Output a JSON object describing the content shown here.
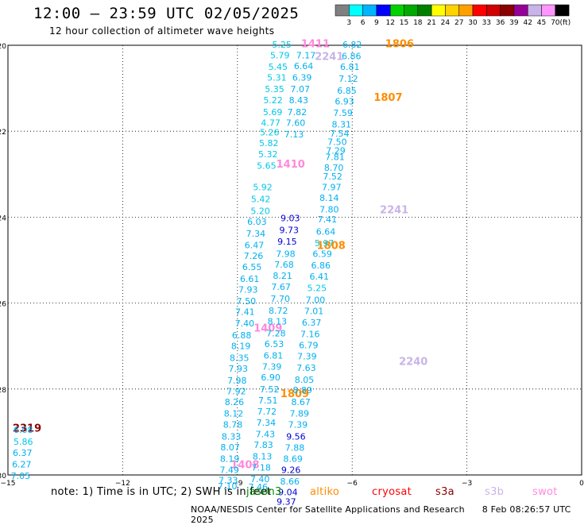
{
  "title": "12:00 – 23:59 UTC 02/05/2025",
  "subtitle": "12 hour collection of altimeter wave heights",
  "note": "note:  1) Time is in UTC;  2) SWH is in feet",
  "credit": "NOAA/NESDIS Center for Satellite Applications and Research",
  "credit_time": "8 Feb 08:26:57 UTC 2025",
  "missions": [
    {
      "name": "jason3",
      "color": "#008800"
    },
    {
      "name": "altiko",
      "color": "#ff8c00"
    },
    {
      "name": "cryosat",
      "color": "#ff0000"
    },
    {
      "name": "s3a",
      "color": "#8b0000"
    },
    {
      "name": "s3b",
      "color": "#c8b4e8"
    },
    {
      "name": "swot",
      "color": "#ff88dd"
    }
  ],
  "color_scale": {
    "unit": "(ft)",
    "labels": [
      "3",
      "6",
      "9",
      "12",
      "15",
      "18",
      "21",
      "24",
      "27",
      "30",
      "33",
      "36",
      "39",
      "42",
      "45",
      "70"
    ],
    "colors": [
      "#808080",
      "#00ffff",
      "#00b4ff",
      "#0000ff",
      "#00d200",
      "#00aa00",
      "#008000",
      "#ffff00",
      "#ffd200",
      "#ffa000",
      "#ff0000",
      "#d20000",
      "#8b0000",
      "#960096",
      "#c8b4e8",
      "#ff96ff",
      "#000000"
    ]
  },
  "map": {
    "lon_range": [
      -15,
      0
    ],
    "lat_range": [
      -30,
      -20
    ],
    "x_ticks": [
      -15,
      -12,
      -9,
      -6,
      -3,
      0
    ],
    "y_ticks": [
      -20,
      -22,
      -24,
      -26,
      -28,
      -30
    ]
  },
  "chart_data": {
    "type": "scatter",
    "x_axis": "longitude",
    "y_axis": "latitude",
    "track_labels": [
      {
        "text": "1411",
        "lon": -6.96,
        "lat": -19.95,
        "color": "#ff88dd"
      },
      {
        "text": "1806",
        "lon": -4.76,
        "lat": -19.95,
        "color": "#ff8c00"
      },
      {
        "text": "2241",
        "lon": -6.6,
        "lat": -20.25,
        "color": "#c8b4e8"
      },
      {
        "text": "1807",
        "lon": -5.06,
        "lat": -21.2,
        "color": "#ff8c00"
      },
      {
        "text": "1410",
        "lon": -7.61,
        "lat": -22.75,
        "color": "#ff88dd"
      },
      {
        "text": "2241",
        "lon": -4.9,
        "lat": -23.82,
        "color": "#c8b4e8"
      },
      {
        "text": "1808",
        "lon": -6.55,
        "lat": -24.65,
        "color": "#ff8c00"
      },
      {
        "text": "1409",
        "lon": -8.2,
        "lat": -26.57,
        "color": "#ff88dd"
      },
      {
        "text": "2240",
        "lon": -4.4,
        "lat": -27.35,
        "color": "#c8b4e8"
      },
      {
        "text": "1809",
        "lon": -7.5,
        "lat": -28.1,
        "color": "#ff8c00"
      },
      {
        "text": "2319",
        "lon": -14.5,
        "lat": -28.9,
        "color": "#8b0000"
      },
      {
        "text": "1408",
        "lon": -8.8,
        "lat": -29.75,
        "color": "#ff88dd"
      }
    ],
    "points": [
      {
        "v": "5.25",
        "lon": -7.84,
        "lat": -19.98
      },
      {
        "v": "5.79",
        "lon": -7.89,
        "lat": -20.23
      },
      {
        "v": "5.45",
        "lon": -7.94,
        "lat": -20.5
      },
      {
        "v": "5.31",
        "lon": -7.97,
        "lat": -20.75
      },
      {
        "v": "5.35",
        "lon": -8.03,
        "lat": -21.02
      },
      {
        "v": "5.22",
        "lon": -8.07,
        "lat": -21.28
      },
      {
        "v": "5.69",
        "lon": -8.08,
        "lat": -21.55
      },
      {
        "v": "4.77",
        "lon": -8.13,
        "lat": -21.8
      },
      {
        "v": "5.26",
        "lon": -8.16,
        "lat": -22.02
      },
      {
        "v": "5.82",
        "lon": -8.18,
        "lat": -22.27
      },
      {
        "v": "5.32",
        "lon": -8.2,
        "lat": -22.53
      },
      {
        "v": "5.65",
        "lon": -8.24,
        "lat": -22.8
      },
      {
        "v": "5.92",
        "lon": -8.34,
        "lat": -23.3
      },
      {
        "v": "5.42",
        "lon": -8.39,
        "lat": -23.58
      },
      {
        "v": "5.20",
        "lon": -8.4,
        "lat": -23.85
      },
      {
        "v": "6.03",
        "lon": -8.49,
        "lat": -24.1
      },
      {
        "v": "7.34",
        "lon": -8.52,
        "lat": -24.38
      },
      {
        "v": "6.47",
        "lon": -8.56,
        "lat": -24.65
      },
      {
        "v": "7.26",
        "lon": -8.58,
        "lat": -24.9
      },
      {
        "v": "6.55",
        "lon": -8.62,
        "lat": -25.16
      },
      {
        "v": "6.61",
        "lon": -8.68,
        "lat": -25.43
      },
      {
        "v": "7.93",
        "lon": -8.72,
        "lat": -25.68
      },
      {
        "v": "7.50",
        "lon": -8.77,
        "lat": -25.95
      },
      {
        "v": "7.41",
        "lon": -8.8,
        "lat": -26.2
      },
      {
        "v": "7.40",
        "lon": -8.81,
        "lat": -26.47
      },
      {
        "v": "6.88",
        "lon": -8.89,
        "lat": -26.75
      },
      {
        "v": "8.19",
        "lon": -8.91,
        "lat": -27.0
      },
      {
        "v": "8.35",
        "lon": -8.95,
        "lat": -27.27
      },
      {
        "v": "7.93",
        "lon": -8.98,
        "lat": -27.52
      },
      {
        "v": "7.98",
        "lon": -9.01,
        "lat": -27.8
      },
      {
        "v": "7.92",
        "lon": -9.03,
        "lat": -28.05
      },
      {
        "v": "8.26",
        "lon": -9.08,
        "lat": -28.3
      },
      {
        "v": "8.12",
        "lon": -9.1,
        "lat": -28.57
      },
      {
        "v": "8.78",
        "lon": -9.12,
        "lat": -28.83
      },
      {
        "v": "8.33",
        "lon": -9.16,
        "lat": -29.1
      },
      {
        "v": "8.07",
        "lon": -9.19,
        "lat": -29.35
      },
      {
        "v": "8.19",
        "lon": -9.2,
        "lat": -29.62
      },
      {
        "v": "7.49",
        "lon": -9.21,
        "lat": -29.88
      },
      {
        "v": "7.33",
        "lon": -9.24,
        "lat": -30.12
      },
      {
        "v": "7.10",
        "lon": -9.26,
        "lat": -30.26
      },
      {
        "v": "7.17",
        "lon": -7.21,
        "lat": -20.23
      },
      {
        "v": "6.64",
        "lon": -7.27,
        "lat": -20.48
      },
      {
        "v": "6.39",
        "lon": -7.31,
        "lat": -20.75
      },
      {
        "v": "7.07",
        "lon": -7.36,
        "lat": -21.02
      },
      {
        "v": "8.43",
        "lon": -7.4,
        "lat": -21.28
      },
      {
        "v": "7.82",
        "lon": -7.44,
        "lat": -21.55
      },
      {
        "v": "7.60",
        "lon": -7.48,
        "lat": -21.8
      },
      {
        "v": "7.13",
        "lon": -7.52,
        "lat": -22.07
      },
      {
        "v": "9.03",
        "lon": -7.62,
        "lat": -24.02
      },
      {
        "v": "9.73",
        "lon": -7.65,
        "lat": -24.3
      },
      {
        "v": "9.15",
        "lon": -7.7,
        "lat": -24.57
      },
      {
        "v": "7.98",
        "lon": -7.74,
        "lat": -24.85
      },
      {
        "v": "7.68",
        "lon": -7.78,
        "lat": -25.1
      },
      {
        "v": "8.21",
        "lon": -7.82,
        "lat": -25.36
      },
      {
        "v": "7.67",
        "lon": -7.86,
        "lat": -25.62
      },
      {
        "v": "7.70",
        "lon": -7.88,
        "lat": -25.9
      },
      {
        "v": "8.72",
        "lon": -7.93,
        "lat": -26.17
      },
      {
        "v": "8.13",
        "lon": -7.96,
        "lat": -26.42
      },
      {
        "v": "7.28",
        "lon": -7.99,
        "lat": -26.7
      },
      {
        "v": "6.53",
        "lon": -8.04,
        "lat": -26.95
      },
      {
        "v": "6.81",
        "lon": -8.06,
        "lat": -27.22
      },
      {
        "v": "7.39",
        "lon": -8.1,
        "lat": -27.48
      },
      {
        "v": "6.90",
        "lon": -8.13,
        "lat": -27.73
      },
      {
        "v": "7.52",
        "lon": -8.16,
        "lat": -28.0
      },
      {
        "v": "7.51",
        "lon": -8.2,
        "lat": -28.26
      },
      {
        "v": "7.72",
        "lon": -8.23,
        "lat": -28.52
      },
      {
        "v": "7.34",
        "lon": -8.25,
        "lat": -28.78
      },
      {
        "v": "7.43",
        "lon": -8.27,
        "lat": -29.05
      },
      {
        "v": "7.83",
        "lon": -8.32,
        "lat": -29.3
      },
      {
        "v": "8.13",
        "lon": -8.35,
        "lat": -29.57
      },
      {
        "v": "7.18",
        "lon": -8.38,
        "lat": -29.82
      },
      {
        "v": "7.40",
        "lon": -8.41,
        "lat": -30.09
      },
      {
        "v": "7.46",
        "lon": -8.46,
        "lat": -30.28
      },
      {
        "v": "6.82",
        "lon": -6.0,
        "lat": -19.98
      },
      {
        "v": "6.86",
        "lon": -6.02,
        "lat": -20.25
      },
      {
        "v": "6.81",
        "lon": -6.06,
        "lat": -20.5
      },
      {
        "v": "7.12",
        "lon": -6.1,
        "lat": -20.78
      },
      {
        "v": "6.85",
        "lon": -6.14,
        "lat": -21.05
      },
      {
        "v": "6.93",
        "lon": -6.2,
        "lat": -21.3
      },
      {
        "v": "7.59",
        "lon": -6.24,
        "lat": -21.57
      },
      {
        "v": "8.31",
        "lon": -6.28,
        "lat": -21.84
      },
      {
        "v": "7.54",
        "lon": -6.33,
        "lat": -22.05
      },
      {
        "v": "7.50",
        "lon": -6.39,
        "lat": -22.25
      },
      {
        "v": "7.29",
        "lon": -6.43,
        "lat": -22.45
      },
      {
        "v": "7.81",
        "lon": -6.45,
        "lat": -22.6
      },
      {
        "v": "8.70",
        "lon": -6.48,
        "lat": -22.85
      },
      {
        "v": "7.52",
        "lon": -6.51,
        "lat": -23.05
      },
      {
        "v": "7.97",
        "lon": -6.54,
        "lat": -23.3
      },
      {
        "v": "8.14",
        "lon": -6.6,
        "lat": -23.55
      },
      {
        "v": "7.80",
        "lon": -6.6,
        "lat": -23.82
      },
      {
        "v": "7.41",
        "lon": -6.65,
        "lat": -24.05
      },
      {
        "v": "6.64",
        "lon": -6.69,
        "lat": -24.33
      },
      {
        "v": "5.97",
        "lon": -6.73,
        "lat": -24.6
      },
      {
        "v": "6.59",
        "lon": -6.78,
        "lat": -24.85
      },
      {
        "v": "6.86",
        "lon": -6.82,
        "lat": -25.12
      },
      {
        "v": "6.41",
        "lon": -6.86,
        "lat": -25.38
      },
      {
        "v": "5.25",
        "lon": -6.92,
        "lat": -25.65
      },
      {
        "v": "7.00",
        "lon": -6.96,
        "lat": -25.92
      },
      {
        "v": "7.01",
        "lon": -7.0,
        "lat": -26.18
      },
      {
        "v": "6.37",
        "lon": -7.06,
        "lat": -26.45
      },
      {
        "v": "7.16",
        "lon": -7.1,
        "lat": -26.72
      },
      {
        "v": "6.79",
        "lon": -7.14,
        "lat": -26.98
      },
      {
        "v": "7.39",
        "lon": -7.18,
        "lat": -27.24
      },
      {
        "v": "7.63",
        "lon": -7.2,
        "lat": -27.5
      },
      {
        "v": "8.05",
        "lon": -7.25,
        "lat": -27.78
      },
      {
        "v": "8.89",
        "lon": -7.3,
        "lat": -28.02
      },
      {
        "v": "8.67",
        "lon": -7.34,
        "lat": -28.3
      },
      {
        "v": "7.89",
        "lon": -7.38,
        "lat": -28.57
      },
      {
        "v": "7.39",
        "lon": -7.42,
        "lat": -28.83
      },
      {
        "v": "9.56",
        "lon": -7.47,
        "lat": -29.1
      },
      {
        "v": "7.88",
        "lon": -7.5,
        "lat": -29.36
      },
      {
        "v": "8.69",
        "lon": -7.55,
        "lat": -29.62
      },
      {
        "v": "9.26",
        "lon": -7.6,
        "lat": -29.88
      },
      {
        "v": "8.66",
        "lon": -7.63,
        "lat": -30.15
      },
      {
        "v": "9.04",
        "lon": -7.68,
        "lat": -30.4
      },
      {
        "v": "9.37",
        "lon": -7.72,
        "lat": -30.62
      },
      {
        "v": "6.08",
        "lon": -14.6,
        "lat": -28.95
      },
      {
        "v": "5.86",
        "lon": -14.6,
        "lat": -29.22
      },
      {
        "v": "6.37",
        "lon": -14.62,
        "lat": -29.48
      },
      {
        "v": "6.27",
        "lon": -14.64,
        "lat": -29.75
      },
      {
        "v": "7.05",
        "lon": -14.67,
        "lat": -30.02
      }
    ]
  }
}
